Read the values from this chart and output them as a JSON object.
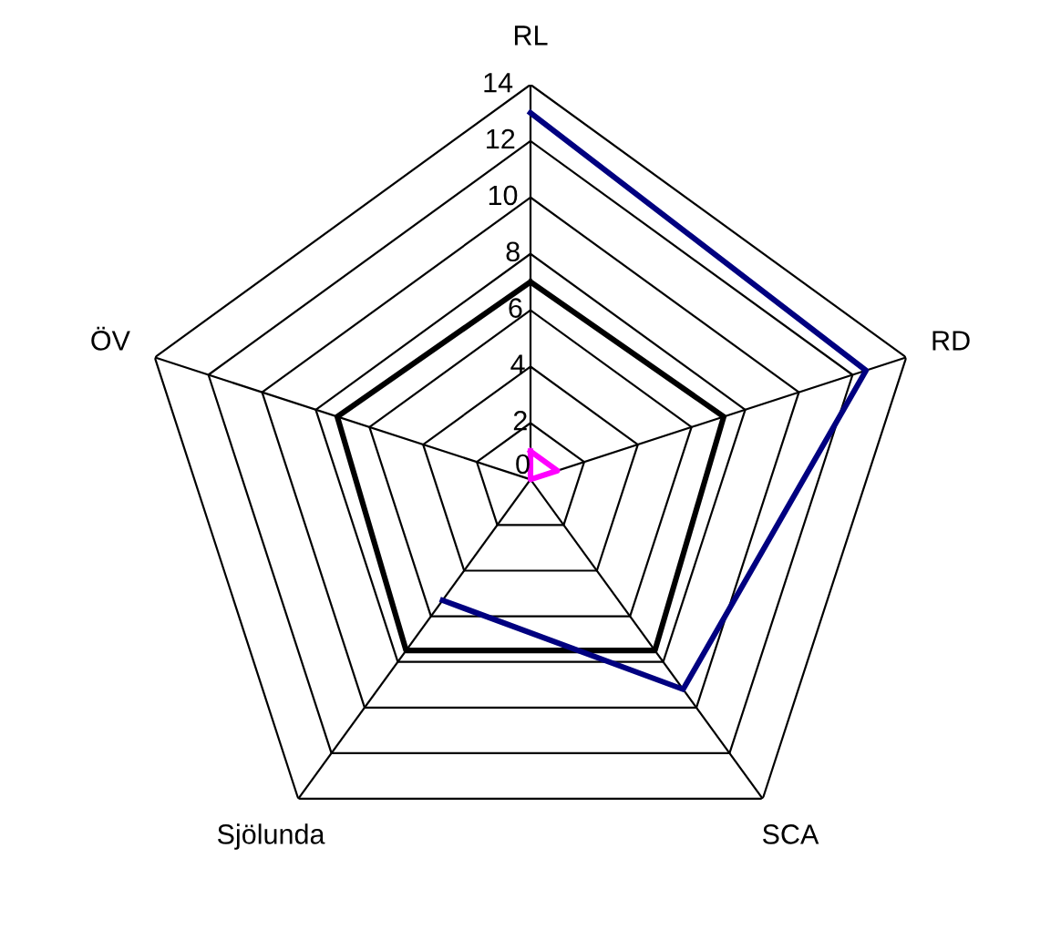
{
  "chart_data": {
    "type": "radar",
    "categories": [
      "RL",
      "RD",
      "SCA",
      "Sjölunda",
      "ÖV"
    ],
    "ylim": [
      0,
      14
    ],
    "yticks": [
      0,
      2,
      4,
      6,
      8,
      10,
      12,
      14
    ],
    "grid": true,
    "series": [
      {
        "color": "#000000",
        "values": [
          7,
          7.2,
          7.5,
          7.5,
          7.2
        ]
      },
      {
        "color": "#000080",
        "values": [
          13,
          12.5,
          9.2,
          5.3,
          null
        ]
      },
      {
        "color": "#ff00ff",
        "values": [
          1,
          1,
          0,
          0,
          0
        ]
      }
    ]
  }
}
